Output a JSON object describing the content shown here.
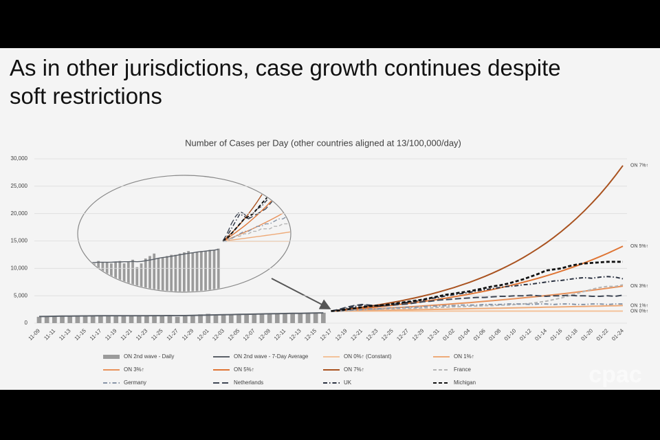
{
  "slide": {
    "headline": [
      "As in other jurisdictions, case growth continues despite",
      "soft restrictions"
    ],
    "watermark": "cpac"
  },
  "chart_data": {
    "type": "combo",
    "title": "Number of Cases per Day (other countries aligned at 13/100,000/day)",
    "categories": [
      "11-09",
      null,
      "11-11",
      null,
      "11-13",
      null,
      "11-15",
      null,
      "11-17",
      null,
      "11-19",
      null,
      "11-21",
      null,
      "11-23",
      null,
      "11-25",
      null,
      "11-27",
      null,
      "11-29",
      null,
      "12-01",
      null,
      "12-03",
      null,
      "12-05",
      null,
      "12-07",
      null,
      "12-09",
      null,
      "12-11",
      null,
      "12-13",
      null,
      "12-15",
      null,
      "12-17",
      null,
      "12-19",
      null,
      "12-21",
      null,
      "12-23",
      null,
      "12-25",
      null,
      "12-27",
      null,
      "12-29",
      null,
      "12-31",
      null,
      "01-02",
      null,
      "01-04",
      null,
      "01-06",
      null,
      "01-08",
      null,
      "01-10",
      null,
      "01-12",
      null,
      "01-14",
      null,
      "01-16",
      null,
      "01-18",
      null,
      "01-20",
      null,
      "01-22",
      null,
      "01-24"
    ],
    "ylim": [
      0,
      32000
    ],
    "yticks": [
      0,
      {
        "value": 5000,
        "label": "5,000"
      },
      {
        "value": 10000,
        "label": "10,000"
      },
      {
        "value": 15000,
        "label": "15,000"
      },
      {
        "value": 20000,
        "label": "20,000"
      },
      {
        "value": 25000,
        "label": "25,000"
      },
      {
        "value": 30000,
        "label": "30,000"
      }
    ],
    "grid": true,
    "series": [
      {
        "name": "ON 2nd wave - Daily",
        "type": "bar",
        "color": "#9b9b9b",
        "values": [
          1150,
          1200,
          1250,
          1350,
          1250,
          1300,
          1400,
          1350,
          1300,
          1400,
          1350,
          1350,
          1300,
          1350,
          1400,
          1300,
          1350,
          1450,
          1150,
          1300,
          1500,
          1600,
          1700,
          1500,
          1550,
          1600,
          1650,
          1650,
          1700,
          1750,
          1800,
          1750,
          1750,
          1800,
          1800,
          1850,
          1850,
          1900,
          null,
          null,
          null,
          null,
          null,
          null,
          null,
          null,
          null,
          null,
          null,
          null,
          null,
          null,
          null,
          null,
          null,
          null,
          null,
          null,
          null,
          null,
          null,
          null,
          null,
          null,
          null,
          null,
          null,
          null,
          null,
          null,
          null,
          null,
          null,
          null,
          null,
          null,
          null
        ]
      },
      {
        "name": "ON 2nd wave - 7-Day Average",
        "type": "line",
        "style": "solid",
        "color": "#5a6068",
        "values": [
          1200,
          1230,
          1260,
          1280,
          1290,
          1300,
          1320,
          1330,
          1340,
          1350,
          1350,
          1350,
          1350,
          1360,
          1360,
          1370,
          1370,
          1380,
          1370,
          1380,
          1410,
          1440,
          1470,
          1510,
          1540,
          1560,
          1590,
          1620,
          1650,
          1680,
          1710,
          1730,
          1760,
          1780,
          1800,
          1820,
          1840,
          1870,
          null,
          null,
          null,
          null,
          null,
          null,
          null,
          null,
          null,
          null,
          null,
          null,
          null,
          null,
          null,
          null,
          null,
          null,
          null,
          null,
          null,
          null,
          null,
          null,
          null,
          null,
          null,
          null,
          null,
          null,
          null,
          null,
          null,
          null,
          null,
          null,
          null,
          null,
          null
        ]
      },
      {
        "name": "ON 0%↑ (Constant)",
        "label": "ON 0%↑",
        "type": "line",
        "style": "solid",
        "color": "#f3c29a",
        "values": [
          null,
          null,
          null,
          null,
          null,
          null,
          null,
          null,
          null,
          null,
          null,
          null,
          null,
          null,
          null,
          null,
          null,
          null,
          null,
          null,
          null,
          null,
          null,
          null,
          null,
          null,
          null,
          null,
          null,
          null,
          null,
          null,
          null,
          null,
          null,
          null,
          null,
          null,
          2200,
          2200,
          2200,
          2200,
          2200,
          2200,
          2200,
          2200,
          2200,
          2200,
          2200,
          2200,
          2200,
          2200,
          2200,
          2200,
          2200,
          2200,
          2200,
          2200,
          2200,
          2200,
          2200,
          2200,
          2200,
          2200,
          2200,
          2200,
          2200,
          2200,
          2200,
          2200,
          2200,
          2200,
          2200,
          2200,
          2200,
          2200,
          2200
        ]
      },
      {
        "name": "ON 1%↑",
        "label": "ON 1%↑",
        "type": "line",
        "style": "solid",
        "color": "#eeaa78",
        "values": [
          null,
          null,
          null,
          null,
          null,
          null,
          null,
          null,
          null,
          null,
          null,
          null,
          null,
          null,
          null,
          null,
          null,
          null,
          null,
          null,
          null,
          null,
          null,
          null,
          null,
          null,
          null,
          null,
          null,
          null,
          null,
          null,
          null,
          null,
          null,
          null,
          null,
          null,
          2200,
          2222,
          2244,
          2267,
          2289,
          2312,
          2335,
          2359,
          2382,
          2406,
          2430,
          2454,
          2479,
          2504,
          2529,
          2554,
          2580,
          2605,
          2631,
          2658,
          2684,
          2711,
          2738,
          2766,
          2793,
          2821,
          2849,
          2878,
          2907,
          2936,
          2965,
          2995,
          3025,
          3055,
          3085,
          3116,
          3147,
          3179,
          3211
        ]
      },
      {
        "name": "ON 3%↑",
        "label": "ON 3%↑",
        "type": "line",
        "style": "solid",
        "color": "#e8915a",
        "values": [
          null,
          null,
          null,
          null,
          null,
          null,
          null,
          null,
          null,
          null,
          null,
          null,
          null,
          null,
          null,
          null,
          null,
          null,
          null,
          null,
          null,
          null,
          null,
          null,
          null,
          null,
          null,
          null,
          null,
          null,
          null,
          null,
          null,
          null,
          null,
          null,
          null,
          null,
          2200,
          2266,
          2334,
          2404,
          2476,
          2550,
          2627,
          2706,
          2787,
          2871,
          2957,
          3045,
          3137,
          3231,
          3328,
          3428,
          3530,
          3636,
          3745,
          3858,
          3973,
          4093,
          4215,
          4342,
          4472,
          4606,
          4745,
          4887,
          5033,
          5185,
          5340,
          5500,
          5665,
          5835,
          6010,
          6191,
          6376,
          6567,
          6765
        ]
      },
      {
        "name": "ON 5%↑",
        "label": "ON 5%↑",
        "type": "line",
        "style": "solid",
        "color": "#df7433",
        "values": [
          null,
          null,
          null,
          null,
          null,
          null,
          null,
          null,
          null,
          null,
          null,
          null,
          null,
          null,
          null,
          null,
          null,
          null,
          null,
          null,
          null,
          null,
          null,
          null,
          null,
          null,
          null,
          null,
          null,
          null,
          null,
          null,
          null,
          null,
          null,
          null,
          null,
          null,
          2200,
          2310,
          2426,
          2547,
          2674,
          2808,
          2948,
          3096,
          3251,
          3413,
          3584,
          3763,
          3951,
          4148,
          4356,
          4574,
          4802,
          5042,
          5295,
          5559,
          5837,
          6129,
          6436,
          6757,
          7095,
          7450,
          7823,
          8214,
          8624,
          9055,
          9508,
          9984,
          10483,
          11007,
          11557,
          12135,
          12742,
          13379,
          14048
        ]
      },
      {
        "name": "ON 7%↑",
        "label": "ON 7%↑",
        "type": "line",
        "style": "solid",
        "color": "#a9521f",
        "values": [
          null,
          null,
          null,
          null,
          null,
          null,
          null,
          null,
          null,
          null,
          null,
          null,
          null,
          null,
          null,
          null,
          null,
          null,
          null,
          null,
          null,
          null,
          null,
          null,
          null,
          null,
          null,
          null,
          null,
          null,
          null,
          null,
          null,
          null,
          null,
          null,
          null,
          null,
          2200,
          2354,
          2519,
          2695,
          2884,
          3086,
          3302,
          3533,
          3780,
          4045,
          4328,
          4631,
          4955,
          5302,
          5673,
          6070,
          6495,
          6949,
          7436,
          7956,
          8513,
          9109,
          9747,
          10429,
          11159,
          11940,
          12776,
          13671,
          14627,
          15651,
          16747,
          17919,
          19174,
          20516,
          21952,
          23489,
          25133,
          26892,
          28774
        ]
      },
      {
        "name": "France",
        "type": "line",
        "style": "dashed",
        "color": "#b5b5b5",
        "values": [
          null,
          null,
          null,
          null,
          null,
          null,
          null,
          null,
          null,
          null,
          null,
          null,
          null,
          null,
          null,
          null,
          null,
          null,
          null,
          null,
          null,
          null,
          null,
          null,
          null,
          null,
          null,
          null,
          null,
          null,
          null,
          null,
          null,
          null,
          null,
          null,
          null,
          null,
          2200,
          2300,
          2300,
          2400,
          2400,
          2500,
          2500,
          2600,
          2600,
          2700,
          2700,
          2700,
          2800,
          2800,
          2900,
          2900,
          3000,
          3000,
          3100,
          3100,
          3200,
          3200,
          3300,
          3300,
          3400,
          3500,
          3600,
          3800,
          4000,
          4300,
          4600,
          5000,
          5400,
          5800,
          6200,
          6500,
          6700,
          6700,
          7000
        ]
      },
      {
        "name": "Germany",
        "type": "line",
        "style": "dash-dot",
        "color": "#8794a6",
        "values": [
          null,
          null,
          null,
          null,
          null,
          null,
          null,
          null,
          null,
          null,
          null,
          null,
          null,
          null,
          null,
          null,
          null,
          null,
          null,
          null,
          null,
          null,
          null,
          null,
          null,
          null,
          null,
          null,
          null,
          null,
          null,
          null,
          null,
          null,
          null,
          null,
          null,
          null,
          2200,
          2200,
          2300,
          2400,
          2500,
          2600,
          2600,
          2700,
          2800,
          2800,
          2900,
          2900,
          3000,
          3100,
          3100,
          3200,
          3200,
          3300,
          3300,
          3300,
          3400,
          3400,
          3400,
          3500,
          3500,
          3500,
          3400,
          3500,
          3500,
          3400,
          3500,
          3500,
          3400,
          3400,
          3500,
          3500,
          3400,
          3500,
          3500
        ]
      },
      {
        "name": "Netherlands",
        "type": "line",
        "style": "long-dash",
        "color": "#3e4654",
        "values": [
          null,
          null,
          null,
          null,
          null,
          null,
          null,
          null,
          null,
          null,
          null,
          null,
          null,
          null,
          null,
          null,
          null,
          null,
          null,
          null,
          null,
          null,
          null,
          null,
          null,
          null,
          null,
          null,
          null,
          null,
          null,
          null,
          null,
          null,
          null,
          null,
          null,
          null,
          2200,
          2500,
          2900,
          3200,
          3400,
          3300,
          3100,
          3200,
          3300,
          3400,
          3500,
          3700,
          3900,
          4000,
          4200,
          4300,
          4400,
          4500,
          4600,
          4700,
          4700,
          4800,
          4900,
          4900,
          5000,
          5000,
          5100,
          5000,
          4900,
          5000,
          5000,
          5100,
          5000,
          5000,
          4900,
          4900,
          5000,
          4900,
          5100
        ]
      },
      {
        "name": "UK",
        "type": "line",
        "style": "dash-dot",
        "color": "#2a3140",
        "values": [
          null,
          null,
          null,
          null,
          null,
          null,
          null,
          null,
          null,
          null,
          null,
          null,
          null,
          null,
          null,
          null,
          null,
          null,
          null,
          null,
          null,
          null,
          null,
          null,
          null,
          null,
          null,
          null,
          null,
          null,
          null,
          null,
          null,
          null,
          null,
          null,
          null,
          null,
          2200,
          2400,
          2700,
          3000,
          3300,
          3200,
          3100,
          3300,
          3500,
          3600,
          3800,
          4000,
          4200,
          4500,
          4700,
          5000,
          5200,
          5400,
          5600,
          5900,
          6100,
          6300,
          6500,
          6700,
          6800,
          7000,
          7100,
          7300,
          7500,
          7700,
          7800,
          8000,
          8200,
          8300,
          8200,
          8400,
          8500,
          8400,
          8100
        ]
      },
      {
        "name": "Michigan",
        "type": "line",
        "style": "dashed",
        "color": "#111111",
        "values": [
          null,
          null,
          null,
          null,
          null,
          null,
          null,
          null,
          null,
          null,
          null,
          null,
          null,
          null,
          null,
          null,
          null,
          null,
          null,
          null,
          null,
          null,
          null,
          null,
          null,
          null,
          null,
          null,
          null,
          null,
          null,
          null,
          null,
          null,
          null,
          null,
          null,
          null,
          2200,
          2300,
          2500,
          2700,
          2900,
          3100,
          3200,
          3300,
          3500,
          3700,
          3900,
          4100,
          4300,
          4600,
          4900,
          5200,
          5400,
          5600,
          5800,
          6100,
          6400,
          6700,
          6900,
          7200,
          7600,
          8000,
          8500,
          9000,
          9600,
          9800,
          10000,
          10400,
          10700,
          10900,
          11000,
          11100,
          11200,
          11200,
          11200
        ]
      }
    ]
  }
}
